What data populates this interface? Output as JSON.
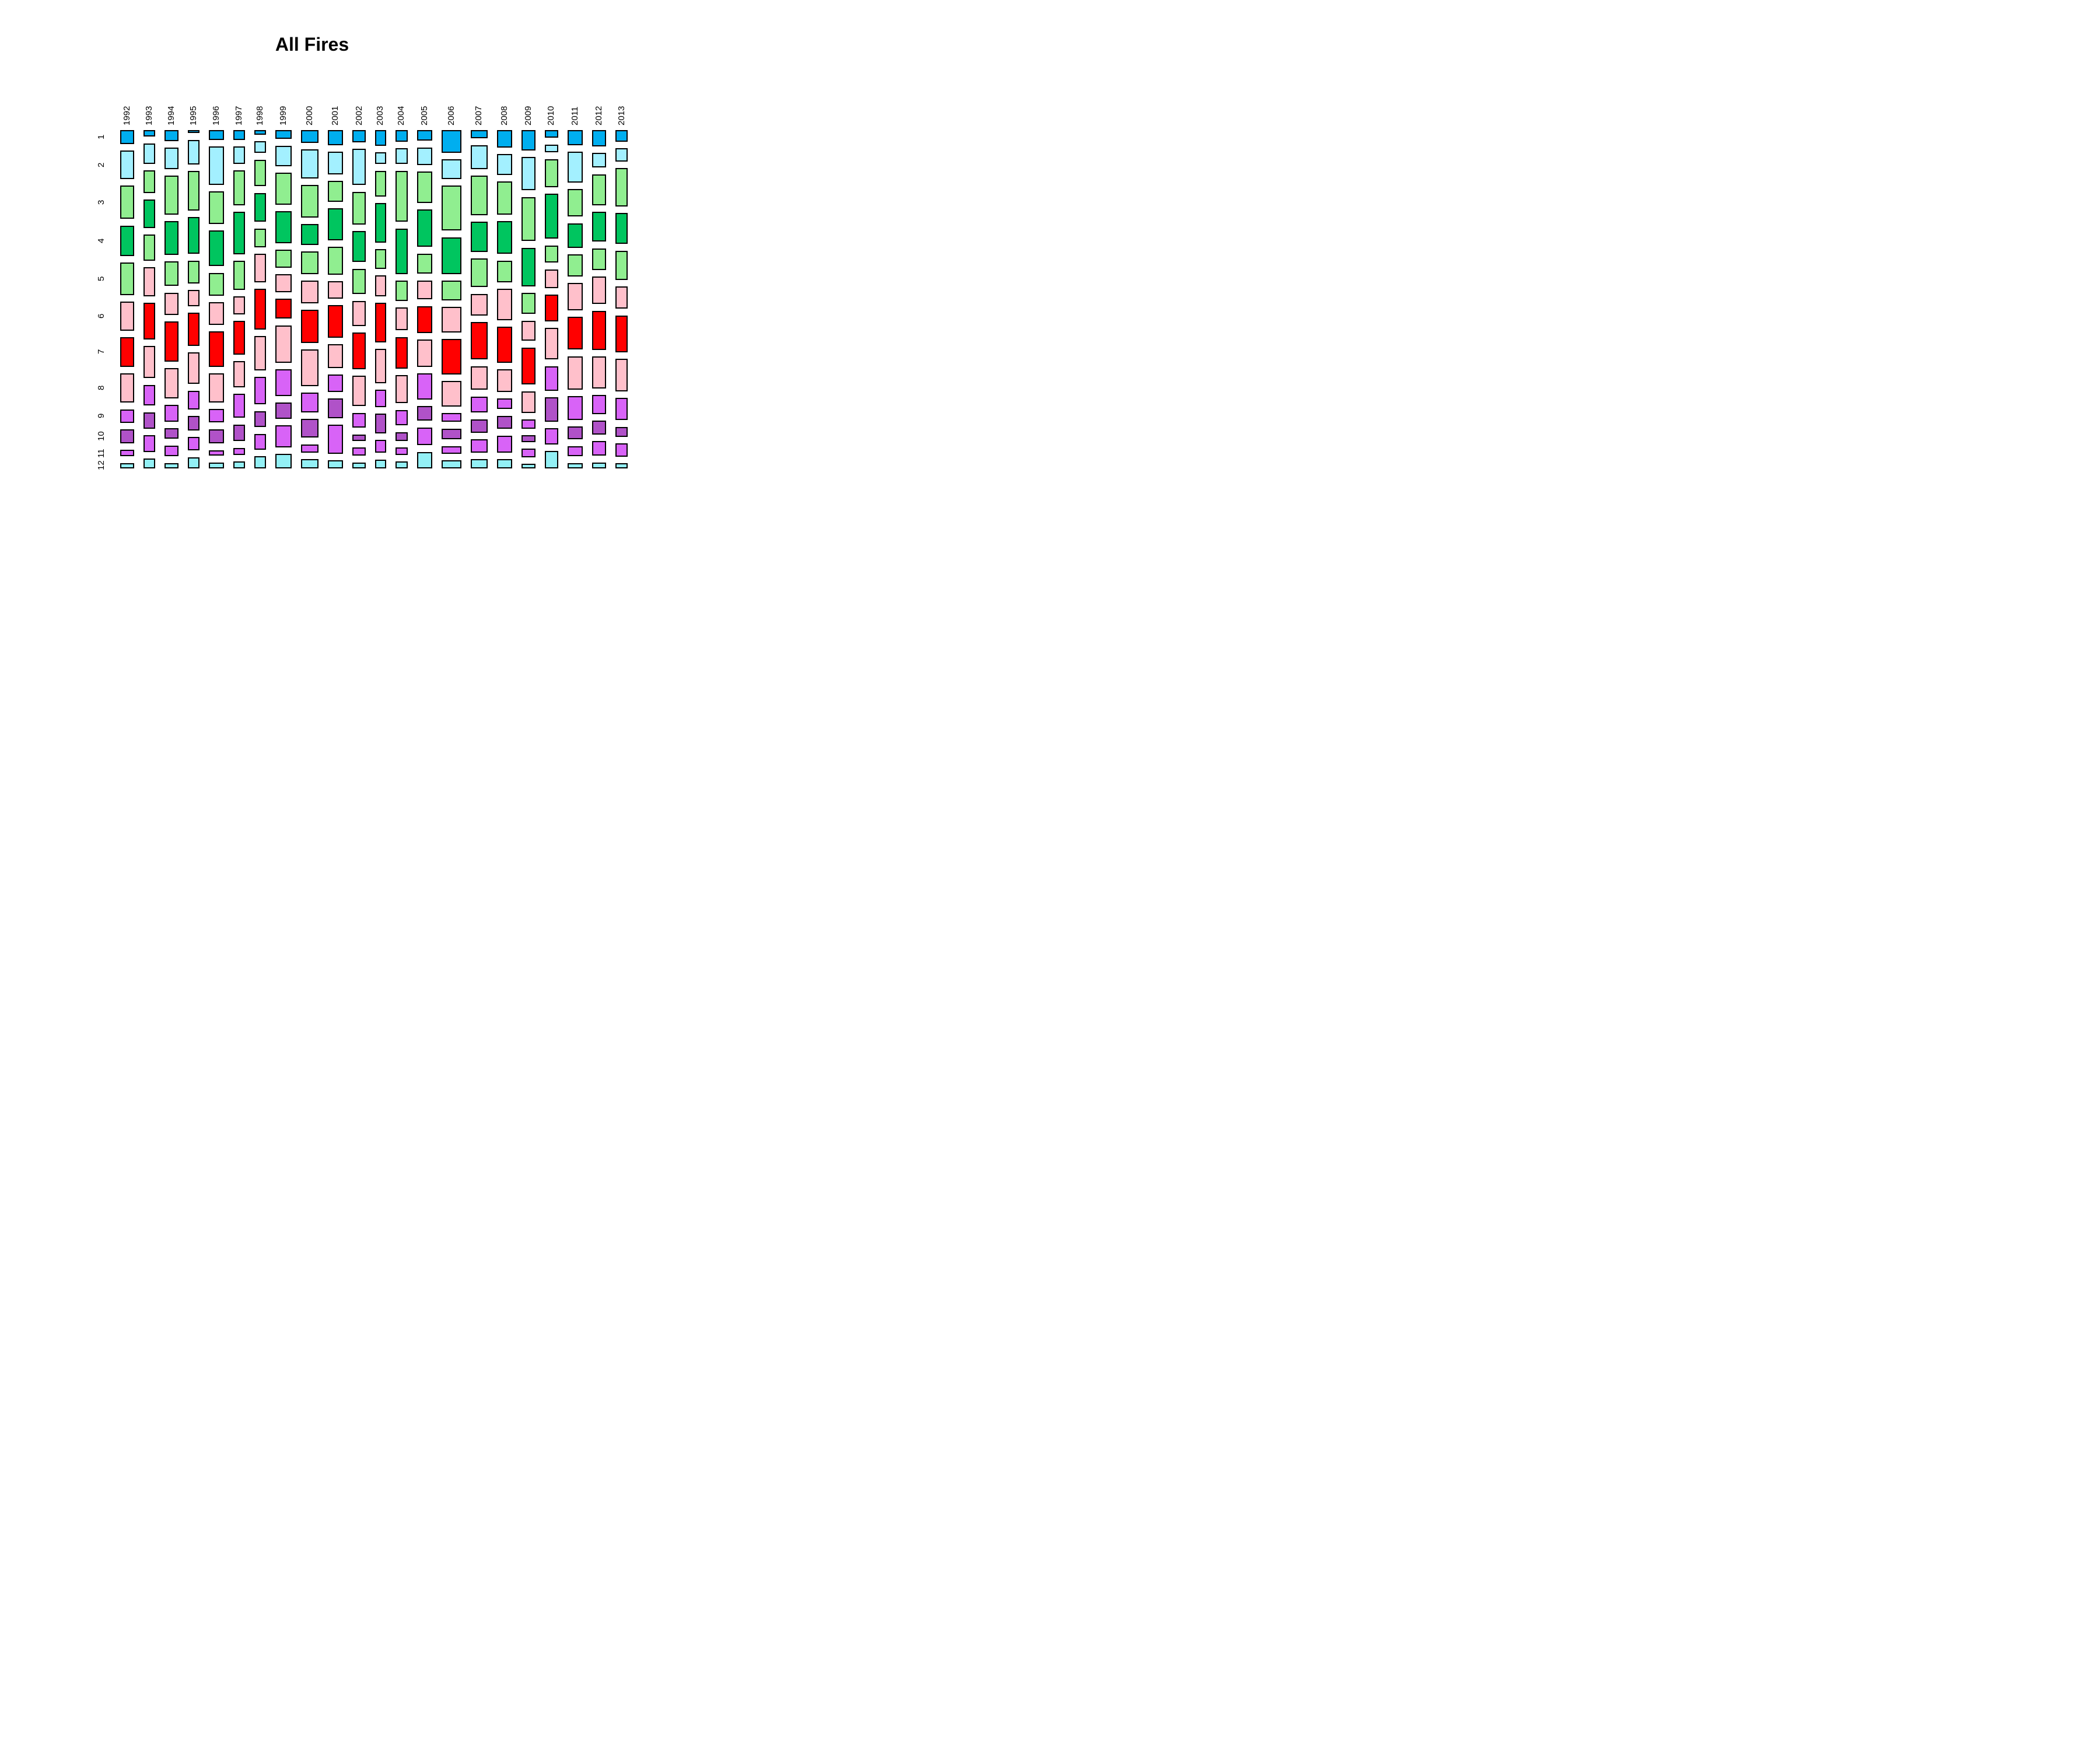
{
  "title": "All Fires",
  "chart_data": {
    "type": "mosaic",
    "title": "All Fires",
    "x_axis_labels": [
      "1992",
      "1993",
      "1994",
      "1995",
      "1996",
      "1997",
      "1998",
      "1999",
      "2000",
      "2001",
      "2002",
      "2003",
      "2004",
      "2005",
      "2006",
      "2007",
      "2008",
      "2009",
      "2010",
      "2011",
      "2012",
      "2013"
    ],
    "y_axis_labels": [
      "1",
      "2",
      "3",
      "4",
      "5",
      "6",
      "7",
      "8",
      "9",
      "10",
      "11",
      "12"
    ],
    "legend": "none",
    "grid": false,
    "month_colors": [
      "#00AEEF",
      "#A3F0FF",
      "#90EE90",
      "#00C55F",
      "#90EE90",
      "#FFC0CB",
      "#FF0000",
      "#FFC0CB",
      "#D863F7",
      "#B052C8",
      "#D863F7",
      "#93F0F5"
    ],
    "cell_border_color": "#000000",
    "years": [
      {
        "label": "1992",
        "width": 72,
        "month_heights": [
          71,
          148,
          171,
          157,
          168,
          148,
          154,
          150,
          71,
          70,
          34,
          28
        ]
      },
      {
        "label": "1993",
        "width": 60,
        "month_heights": [
          34,
          108,
          116,
          148,
          134,
          151,
          191,
          167,
          108,
          86,
          86,
          51
        ]
      },
      {
        "label": "1994",
        "width": 72,
        "month_heights": [
          57,
          111,
          201,
          173,
          128,
          114,
          208,
          157,
          85,
          55,
          57,
          28
        ]
      },
      {
        "label": "1995",
        "width": 61,
        "month_heights": [
          16,
          123,
          200,
          186,
          116,
          82,
          165,
          160,
          96,
          72,
          68,
          57
        ]
      },
      {
        "label": "1996",
        "width": 78,
        "month_heights": [
          50,
          197,
          167,
          182,
          118,
          114,
          182,
          149,
          69,
          74,
          29,
          31
        ]
      },
      {
        "label": "1997",
        "width": 60,
        "month_heights": [
          50,
          89,
          180,
          219,
          148,
          92,
          173,
          134,
          125,
          86,
          37,
          35
        ]
      },
      {
        "label": "1998",
        "width": 60,
        "month_heights": [
          23,
          62,
          137,
          150,
          96,
          148,
          209,
          178,
          142,
          83,
          83,
          62
        ]
      },
      {
        "label": "1999",
        "width": 87,
        "month_heights": [
          46,
          105,
          162,
          163,
          91,
          91,
          102,
          191,
          137,
          82,
          112,
          74
        ]
      },
      {
        "label": "2000",
        "width": 88,
        "month_heights": [
          65,
          152,
          167,
          109,
          116,
          116,
          171,
          191,
          102,
          96,
          43,
          48
        ]
      },
      {
        "label": "2001",
        "width": 79,
        "month_heights": [
          76,
          113,
          106,
          160,
          140,
          88,
          164,
          120,
          88,
          99,
          146,
          40
        ]
      },
      {
        "label": "2002",
        "width": 71,
        "month_heights": [
          62,
          185,
          167,
          157,
          130,
          129,
          185,
          156,
          76,
          34,
          41,
          31
        ]
      },
      {
        "label": "2003",
        "width": 55,
        "month_heights": [
          80,
          62,
          132,
          205,
          102,
          106,
          205,
          176,
          91,
          100,
          68,
          46
        ]
      },
      {
        "label": "2004",
        "width": 64,
        "month_heights": [
          57,
          76,
          248,
          222,
          97,
          111,
          153,
          137,
          76,
          42,
          36,
          34
        ]
      },
      {
        "label": "2005",
        "width": 80,
        "month_heights": [
          54,
          88,
          159,
          189,
          102,
          96,
          137,
          137,
          132,
          73,
          91,
          83
        ]
      },
      {
        "label": "2006",
        "width": 102,
        "month_heights": [
          114,
          100,
          228,
          187,
          98,
          131,
          179,
          128,
          45,
          55,
          40,
          40
        ]
      },
      {
        "label": "2007",
        "width": 86,
        "month_heights": [
          42,
          122,
          199,
          154,
          145,
          109,
          190,
          120,
          82,
          68,
          68,
          46
        ]
      },
      {
        "label": "2008",
        "width": 80,
        "month_heights": [
          88,
          107,
          166,
          167,
          110,
          160,
          182,
          114,
          54,
          68,
          87,
          46
        ]
      },
      {
        "label": "2009",
        "width": 72,
        "month_heights": [
          99,
          164,
          216,
          190,
          103,
          99,
          182,
          106,
          45,
          34,
          41,
          23
        ]
      },
      {
        "label": "2010",
        "width": 68,
        "month_heights": [
          39,
          41,
          141,
          228,
          87,
          96,
          133,
          160,
          125,
          122,
          83,
          87
        ]
      },
      {
        "label": "2011",
        "width": 80,
        "month_heights": [
          76,
          153,
          137,
          122,
          110,
          137,
          163,
          166,
          118,
          65,
          52,
          27
        ]
      },
      {
        "label": "2012",
        "width": 73,
        "month_heights": [
          80,
          73,
          152,
          148,
          106,
          137,
          194,
          156,
          94,
          68,
          73,
          30
        ]
      },
      {
        "label": "2013",
        "width": 62,
        "month_heights": [
          57,
          65,
          189,
          153,
          144,
          110,
          182,
          160,
          109,
          50,
          64,
          26
        ]
      }
    ]
  }
}
